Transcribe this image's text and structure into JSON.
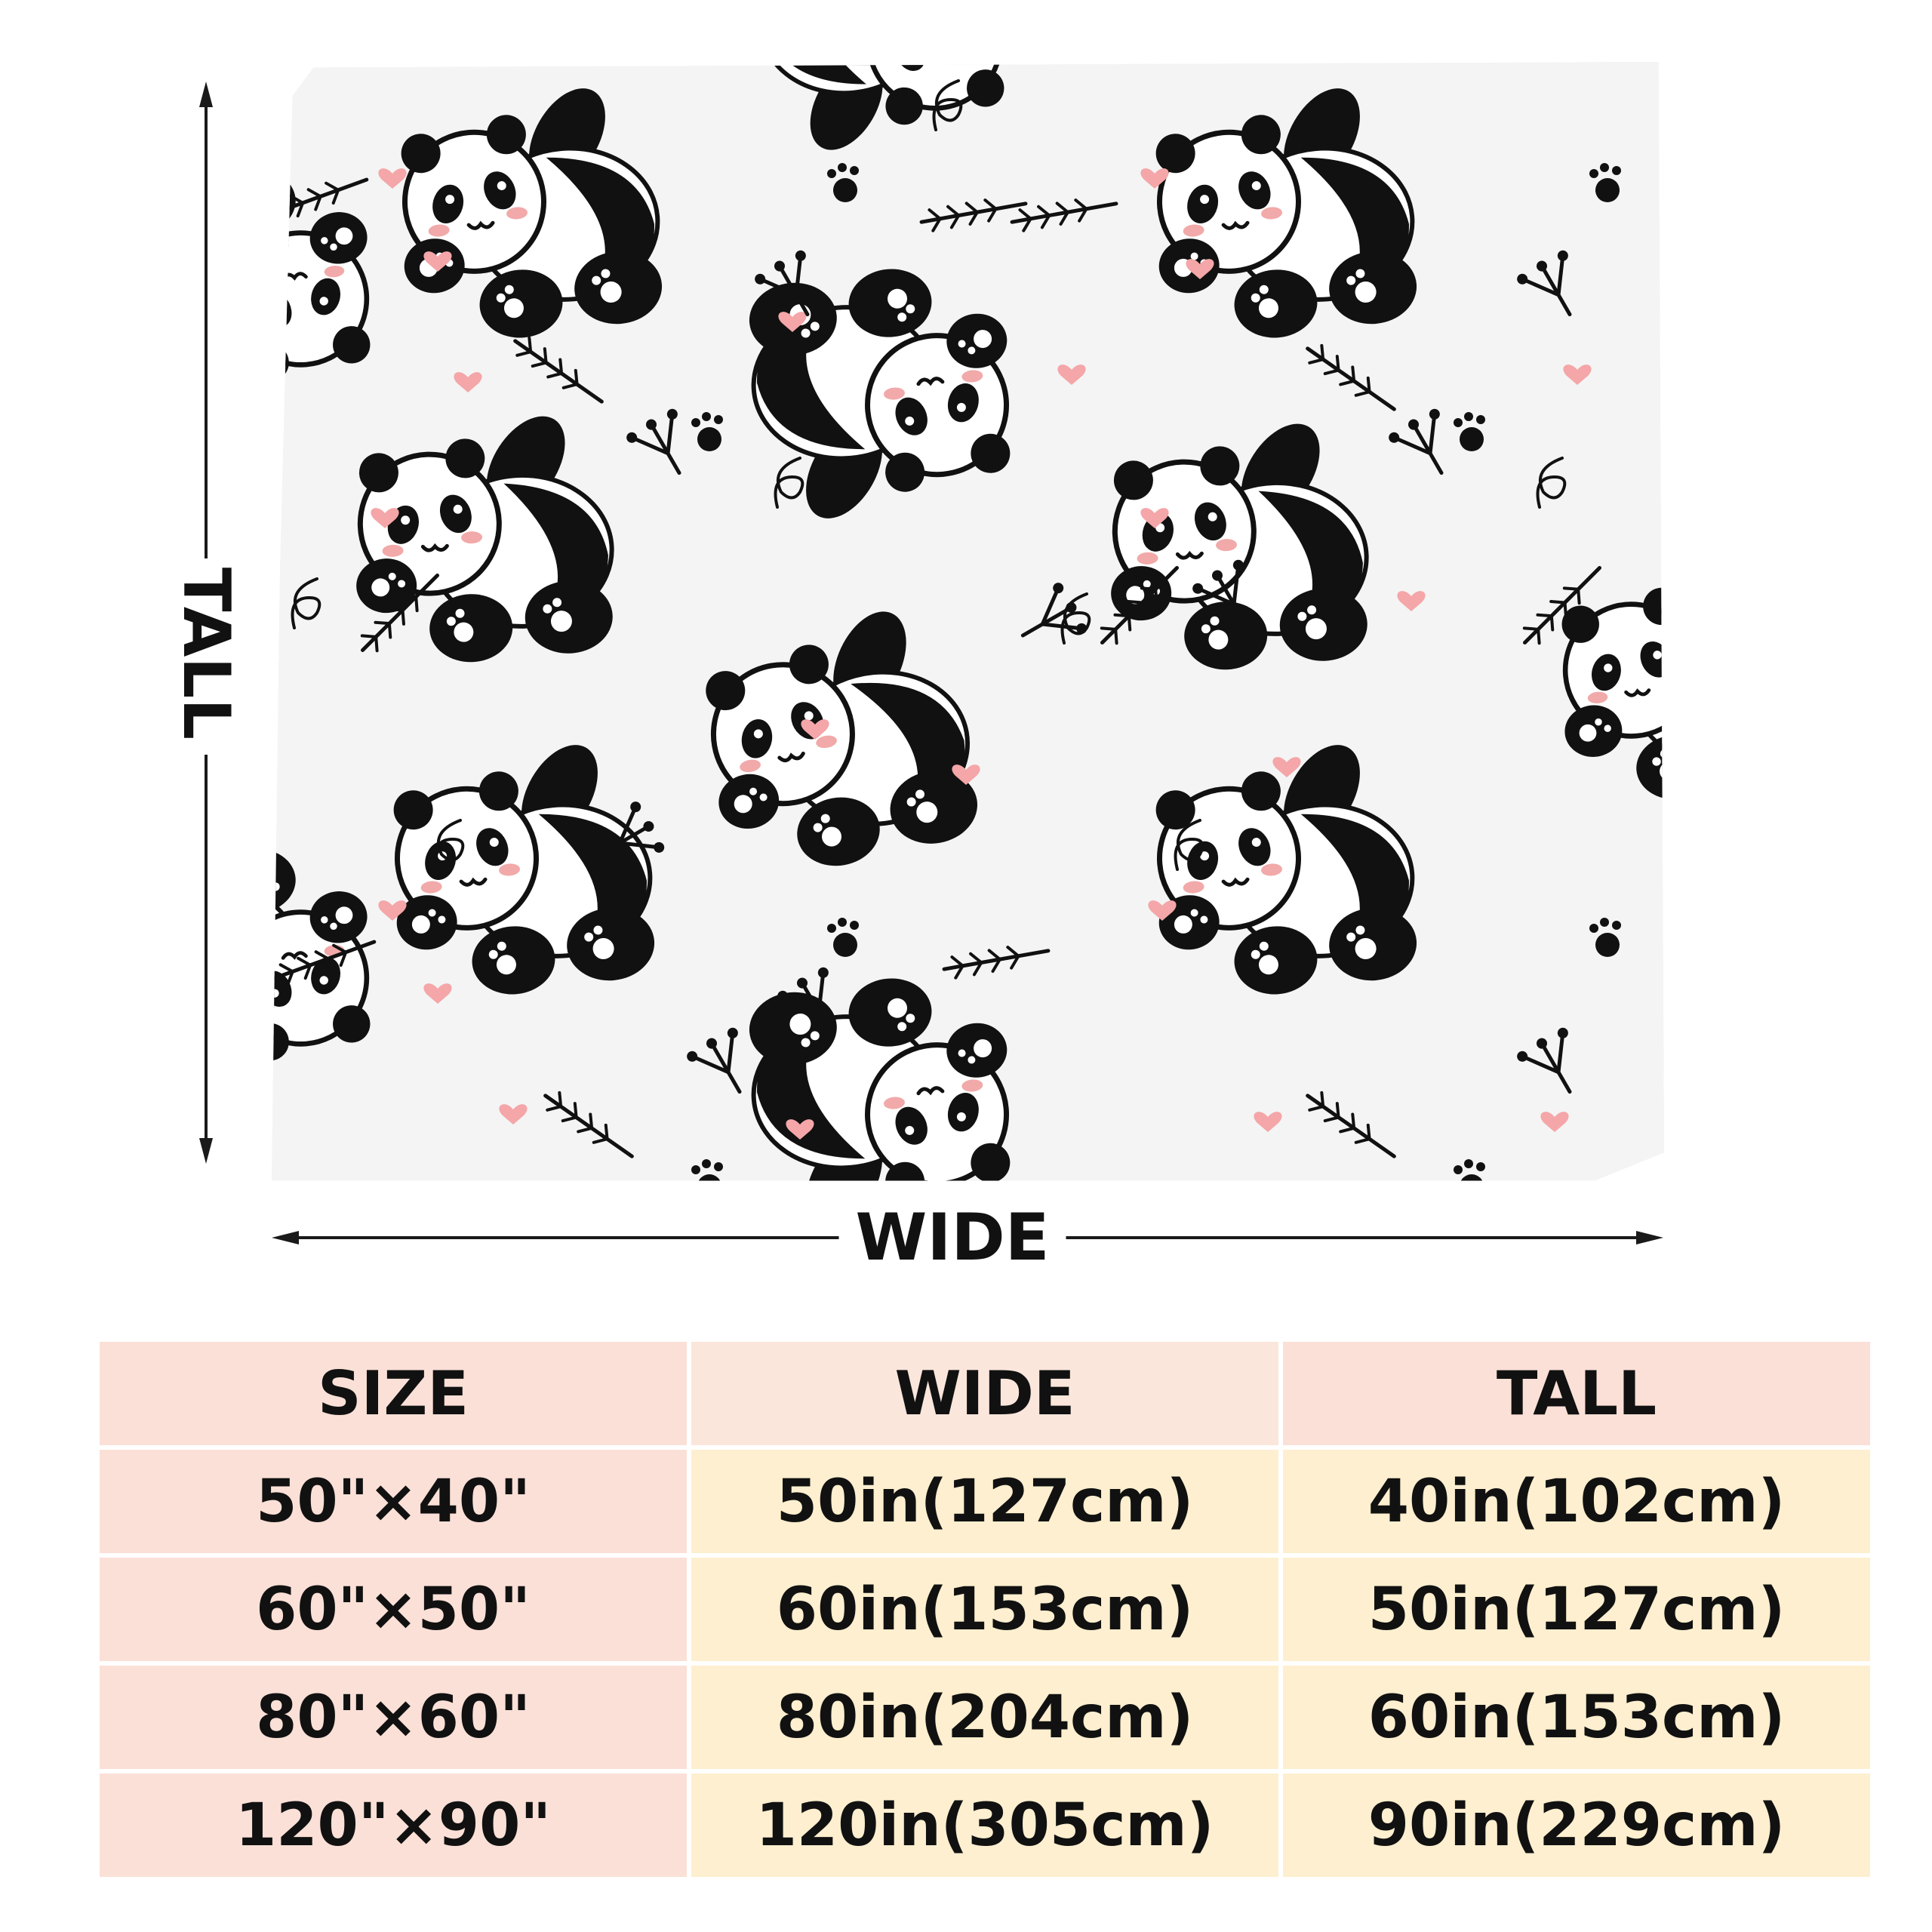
{
  "dimension_labels": {
    "tall": "TALL",
    "wide": "WIDE"
  },
  "product_image": {
    "subject": "blanket with cartoon panda, heart, paw print and bamboo sprig pattern",
    "colors": {
      "background": "#f4f4f4",
      "panda_black": "#111111",
      "blush_pink": "#f2a9a9",
      "heart_pink": "#f4a6a8"
    }
  },
  "size_table": {
    "headers": [
      "SIZE",
      "WIDE",
      "TALL"
    ],
    "rows": [
      {
        "size": "50\"×40\"",
        "wide": "50in(127cm)",
        "tall": "40in(102cm)"
      },
      {
        "size": "60\"×50\"",
        "wide": "60in(153cm)",
        "tall": "50in(127cm)"
      },
      {
        "size": "80\"×60\"",
        "wide": "80in(204cm)",
        "tall": "60in(153cm)"
      },
      {
        "size": "120\"×90\"",
        "wide": "120in(305cm)",
        "tall": "90in(229cm)"
      }
    ],
    "colors": {
      "header_bg": "#fbe0d7",
      "size_col_bg": "#fbe0d7",
      "value_col_bg": "#fdefcf"
    }
  }
}
